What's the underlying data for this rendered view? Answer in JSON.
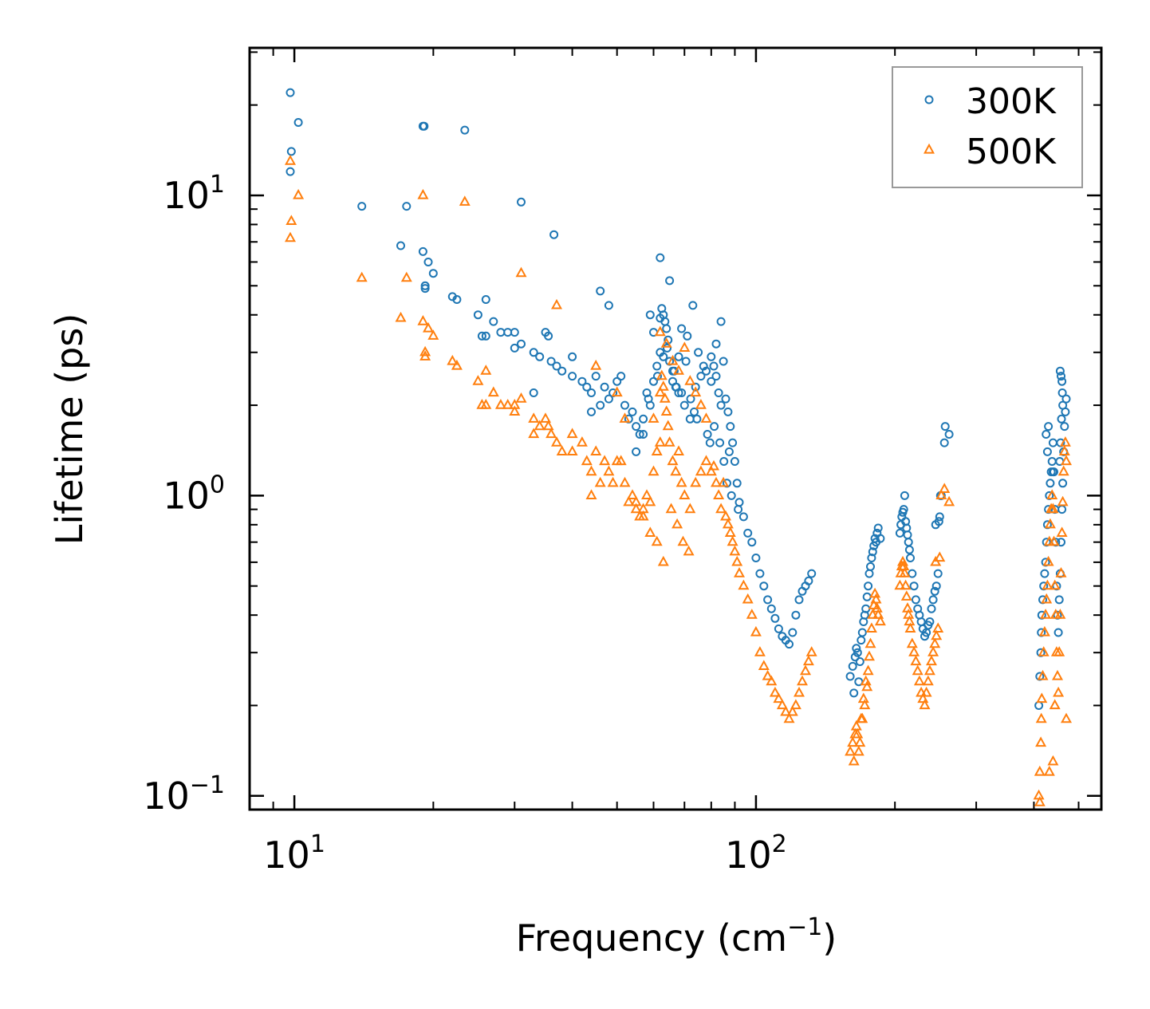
{
  "chart_data": {
    "type": "scatter",
    "xscale": "log",
    "yscale": "log",
    "xlim": [
      8,
      560
    ],
    "ylim": [
      0.09,
      31
    ],
    "xlabel": "Frequency (cm",
    "xlabel_sup": "−1",
    "xlabel_end": ")",
    "ylabel": "Lifetime (ps)",
    "legend_position": "top-right",
    "x_major_ticks": [
      {
        "value": 10,
        "base": "10",
        "exp": "1"
      },
      {
        "value": 100,
        "base": "10",
        "exp": "2"
      }
    ],
    "y_major_ticks": [
      {
        "value": 0.1,
        "base": "10",
        "exp": "−1"
      },
      {
        "value": 1,
        "base": "10",
        "exp": "0"
      },
      {
        "value": 10,
        "base": "10",
        "exp": "1"
      }
    ],
    "series": [
      {
        "name": "300K",
        "color": "#1f77b4",
        "marker": "circle",
        "x": [
          9.8,
          10.2,
          9.85,
          9.8,
          14,
          17,
          17.5,
          19,
          19.5,
          20,
          19.2,
          19.2,
          22,
          22.5,
          19,
          25,
          25.5,
          26,
          26,
          27,
          28,
          29,
          30,
          31,
          30,
          35,
          35.5,
          33,
          34,
          33,
          36,
          37,
          38,
          40,
          40,
          42,
          43,
          44,
          45,
          46,
          44,
          47,
          48,
          49,
          50,
          51,
          52,
          53,
          54,
          55,
          56,
          57,
          58,
          59,
          60,
          61,
          62,
          60,
          62,
          62.5,
          63,
          63.5,
          64,
          64.5,
          65,
          66,
          67,
          68,
          69,
          70,
          72,
          74,
          76,
          78,
          80,
          81,
          82,
          83,
          84,
          85,
          86,
          87,
          88,
          89,
          90,
          91,
          92,
          94,
          96,
          98,
          100,
          102,
          104,
          106,
          108,
          110,
          112,
          114,
          116,
          118,
          120,
          122,
          124,
          126,
          128,
          130,
          132,
          31,
          36.5,
          23.4,
          19.1,
          46,
          48,
          73,
          84,
          62,
          65,
          69,
          71,
          75,
          59,
          80,
          82,
          77,
          66,
          68,
          63,
          64.2,
          66.5,
          55,
          57,
          58.5,
          61.2,
          70.5,
          73.5,
          67.2,
          72.2,
          74.5,
          78.5,
          85.2,
          87.5,
          79.5,
          83.5,
          81.2,
          86.5,
          88.5,
          91.5,
          160,
          162,
          164,
          165,
          166,
          168,
          170,
          172,
          174,
          175,
          176,
          177,
          178,
          179,
          180,
          181,
          182,
          183,
          184,
          186,
          163,
          167,
          169,
          171,
          173,
          205,
          206,
          207,
          208,
          209,
          210,
          211,
          212,
          213,
          214,
          215,
          216,
          218,
          220,
          222,
          224,
          226,
          228,
          230,
          232,
          234,
          236,
          238,
          240,
          242,
          244,
          246,
          248,
          245,
          250,
          252,
          256,
          262,
          257,
          251,
          249,
          410,
          412,
          414,
          415,
          416,
          418,
          420,
          422,
          424,
          426,
          428,
          430,
          432,
          434,
          436,
          438,
          440,
          442,
          444,
          446,
          448,
          450,
          452,
          454,
          456,
          458,
          460,
          462,
          464,
          466,
          468,
          470,
          425,
          430,
          428,
          440,
          456,
          458,
          460,
          461,
          462,
          459,
          457,
          455
        ],
        "y": [
          22,
          17.5,
          14,
          12,
          9.2,
          6.8,
          9.2,
          17,
          6,
          5.5,
          5,
          4.9,
          4.6,
          4.5,
          6.5,
          4,
          3.4,
          3.4,
          4.5,
          3.8,
          3.5,
          3.5,
          3.5,
          3.2,
          3.1,
          3.5,
          3.4,
          3,
          2.9,
          2.2,
          2.8,
          2.7,
          2.6,
          2.5,
          2.9,
          2.4,
          2.3,
          2.2,
          2.5,
          2,
          1.9,
          2.3,
          2.1,
          2.2,
          2.4,
          2.5,
          2,
          1.8,
          1.9,
          1.7,
          1.6,
          1.8,
          2.2,
          2,
          2.4,
          2.7,
          3,
          3.5,
          3.9,
          4.2,
          4,
          3.8,
          3.6,
          3.3,
          2.8,
          2.6,
          2.3,
          2.9,
          2.2,
          2,
          1.8,
          2.3,
          2.5,
          2.6,
          2.4,
          2.7,
          2.5,
          2.2,
          2,
          2.8,
          2.1,
          1.9,
          1.7,
          1.5,
          1.3,
          1.1,
          0.95,
          0.85,
          0.75,
          0.7,
          0.62,
          0.55,
          0.5,
          0.45,
          0.42,
          0.39,
          0.36,
          0.34,
          0.33,
          0.32,
          0.35,
          0.4,
          0.45,
          0.48,
          0.5,
          0.52,
          0.55,
          9.5,
          7.4,
          16.5,
          17,
          4.8,
          4.3,
          4.3,
          3.8,
          6.2,
          5.2,
          3.6,
          3.4,
          3,
          4,
          2.9,
          3.2,
          2.7,
          2.4,
          2.2,
          2.9,
          3.1,
          2.6,
          1.4,
          1.6,
          2.1,
          2.5,
          2.8,
          1.9,
          2.3,
          2.1,
          1.8,
          1.6,
          1.3,
          1.4,
          1.5,
          1.5,
          1.7,
          1.1,
          1.0,
          0.9,
          0.25,
          0.27,
          0.29,
          0.31,
          0.3,
          0.28,
          0.35,
          0.4,
          0.46,
          0.5,
          0.55,
          0.58,
          0.62,
          0.65,
          0.68,
          0.72,
          0.7,
          0.75,
          0.78,
          0.72,
          0.22,
          0.24,
          0.33,
          0.38,
          0.42,
          0.75,
          0.8,
          0.85,
          0.88,
          0.9,
          1.0,
          0.82,
          0.78,
          0.74,
          0.7,
          0.66,
          0.62,
          0.55,
          0.5,
          0.45,
          0.42,
          0.4,
          0.38,
          0.36,
          0.34,
          0.35,
          0.37,
          0.38,
          0.42,
          0.45,
          0.48,
          0.5,
          0.55,
          0.8,
          0.85,
          1.0,
          1.5,
          1.6,
          1.7,
          1.0,
          0.82,
          0.2,
          0.25,
          0.3,
          0.35,
          0.4,
          0.45,
          0.5,
          0.55,
          0.6,
          0.7,
          0.8,
          0.9,
          1.0,
          1.1,
          1.2,
          1.3,
          1.5,
          1.2,
          0.9,
          0.7,
          0.5,
          0.4,
          0.35,
          0.45,
          0.55,
          0.7,
          0.9,
          1.1,
          1.4,
          1.7,
          1.9,
          2.1,
          1.6,
          1.7,
          1.4,
          1.2,
          2.6,
          2.5,
          2.4,
          2.2,
          2.0,
          1.8,
          1.5,
          1.3
        ]
      },
      {
        "name": "500K",
        "color": "#ff7f0e",
        "marker": "triangle",
        "x": [
          9.8,
          10.2,
          9.85,
          9.8,
          14,
          17,
          17.5,
          19,
          19.5,
          20,
          19.2,
          19.2,
          22,
          22.5,
          19,
          25,
          25.5,
          26,
          26,
          27,
          28,
          29,
          30,
          31,
          30,
          35,
          35.5,
          33,
          34,
          33,
          36,
          37,
          38,
          40,
          40,
          42,
          43,
          44,
          45,
          46,
          44,
          47,
          48,
          49,
          50,
          51,
          52,
          53,
          54,
          55,
          56,
          57,
          58,
          59,
          60,
          61,
          62,
          60,
          62,
          62.5,
          63,
          63.5,
          64,
          64.5,
          65,
          66,
          67,
          68,
          69,
          70,
          72,
          74,
          76,
          78,
          80,
          81,
          82,
          83,
          84,
          85,
          86,
          87,
          88,
          89,
          90,
          91,
          92,
          94,
          96,
          98,
          100,
          102,
          104,
          106,
          108,
          110,
          112,
          114,
          116,
          118,
          120,
          122,
          124,
          126,
          128,
          130,
          132,
          23.4,
          31,
          37,
          45,
          50,
          52,
          62,
          64,
          66,
          68,
          70,
          72,
          74,
          76,
          78,
          55,
          57,
          59,
          61,
          63,
          65.5,
          67.5,
          69.5,
          71.5,
          160,
          162,
          164,
          165,
          166,
          168,
          170,
          172,
          174,
          175,
          176,
          177,
          178,
          179,
          180,
          181,
          182,
          183,
          184,
          186,
          163,
          167,
          169,
          171,
          173,
          205,
          206,
          207,
          208,
          209,
          210,
          211,
          212,
          213,
          214,
          215,
          216,
          218,
          220,
          222,
          224,
          226,
          228,
          230,
          232,
          234,
          236,
          238,
          240,
          242,
          244,
          246,
          248,
          245,
          250,
          252,
          256,
          262,
          410,
          412,
          414,
          415,
          416,
          418,
          420,
          422,
          424,
          426,
          428,
          430,
          432,
          434,
          436,
          438,
          440,
          442,
          444,
          446,
          448,
          450,
          452,
          454,
          456,
          458,
          460,
          462,
          464,
          466,
          468,
          470,
          432,
          440,
          444,
          412,
          470
        ],
        "y": [
          13,
          10,
          8.2,
          7.2,
          5.3,
          3.9,
          5.3,
          10,
          3.6,
          3.4,
          3,
          2.9,
          2.8,
          2.7,
          3.8,
          2.4,
          2,
          2,
          2.6,
          2.2,
          2,
          2,
          2,
          2.1,
          1.9,
          1.8,
          1.7,
          1.8,
          1.7,
          1.6,
          1.6,
          1.5,
          1.4,
          1.4,
          1.6,
          1.5,
          1.3,
          1.2,
          1.4,
          1.1,
          1.0,
          1.3,
          1.2,
          1.1,
          1.3,
          1.3,
          1.1,
          0.95,
          1.0,
          0.9,
          0.85,
          0.9,
          1.0,
          0.95,
          1.2,
          1.4,
          1.5,
          1.8,
          2.2,
          2.5,
          2.3,
          2.1,
          1.9,
          1.7,
          1.5,
          1.3,
          1.2,
          1.4,
          1.1,
          1.0,
          0.9,
          1.1,
          1.2,
          1.3,
          1.2,
          1.25,
          1.1,
          1.0,
          0.9,
          1.1,
          0.85,
          0.8,
          0.75,
          0.7,
          0.65,
          0.6,
          0.55,
          0.5,
          0.45,
          0.4,
          0.35,
          0.3,
          0.27,
          0.25,
          0.24,
          0.22,
          0.21,
          0.2,
          0.19,
          0.18,
          0.19,
          0.2,
          0.22,
          0.24,
          0.26,
          0.28,
          0.3,
          9.5,
          5.5,
          4.3,
          2.7,
          2.2,
          1.8,
          3.5,
          3.2,
          2.8,
          2.6,
          3.1,
          2.4,
          2.2,
          2.0,
          1.8,
          0.95,
          0.85,
          0.75,
          0.7,
          0.6,
          0.9,
          0.8,
          0.7,
          0.65,
          0.14,
          0.15,
          0.16,
          0.17,
          0.16,
          0.15,
          0.18,
          0.2,
          0.23,
          0.26,
          0.29,
          0.32,
          0.36,
          0.4,
          0.43,
          0.47,
          0.45,
          0.42,
          0.4,
          0.38,
          0.13,
          0.14,
          0.18,
          0.21,
          0.24,
          0.5,
          0.55,
          0.58,
          0.6,
          0.58,
          0.55,
          0.5,
          0.46,
          0.42,
          0.4,
          0.38,
          0.36,
          0.32,
          0.3,
          0.28,
          0.26,
          0.24,
          0.22,
          0.21,
          0.2,
          0.22,
          0.24,
          0.26,
          0.28,
          0.3,
          0.32,
          0.34,
          0.36,
          0.6,
          0.62,
          1.0,
          1.05,
          0.95,
          0.1,
          0.12,
          0.15,
          0.18,
          0.21,
          0.25,
          0.3,
          0.35,
          0.4,
          0.45,
          0.5,
          0.6,
          0.7,
          0.8,
          0.9,
          1.0,
          0.9,
          0.7,
          0.5,
          0.4,
          0.3,
          0.25,
          0.22,
          0.3,
          0.4,
          0.55,
          0.75,
          0.95,
          1.2,
          1.4,
          1.5,
          1.3,
          0.12,
          0.13,
          0.2,
          0.095,
          0.18
        ]
      }
    ]
  }
}
